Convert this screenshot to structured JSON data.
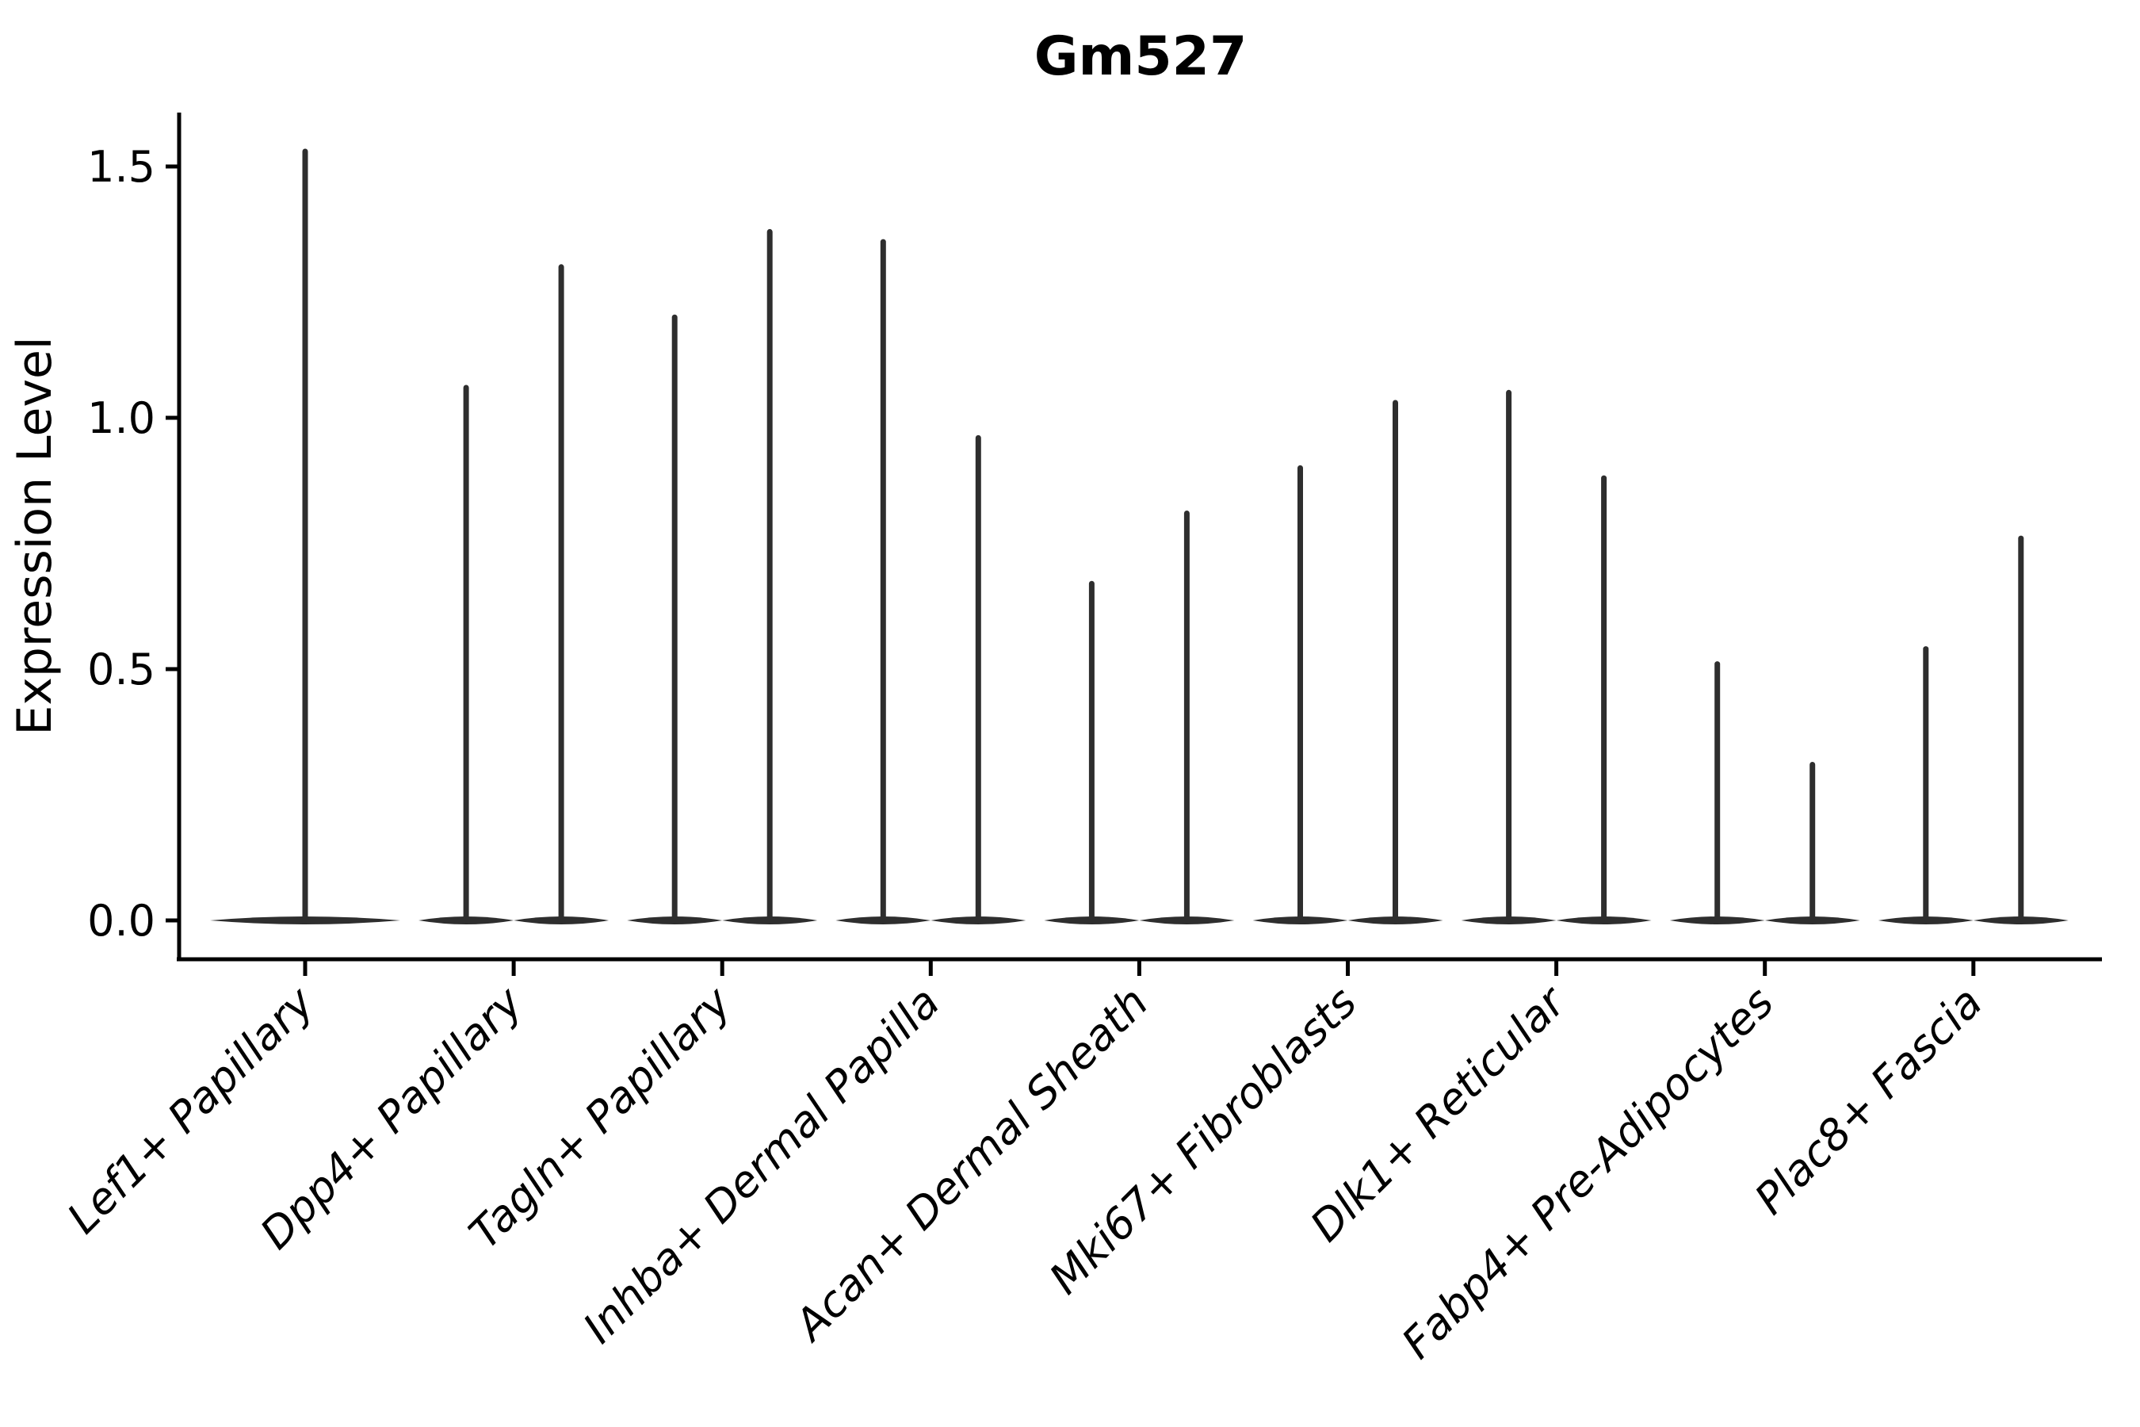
{
  "chart_data": {
    "type": "violin",
    "title": "Gm527",
    "ylabel": "Expression Level",
    "xlabel": "",
    "yticks": [
      "0.0",
      "0.5",
      "1.0",
      "1.5"
    ],
    "ytick_values": [
      0.0,
      0.5,
      1.0,
      1.5
    ],
    "ylim": [
      -0.08,
      1.61
    ],
    "grid": false,
    "legend": "none",
    "xlabel_rotation_degrees": 45,
    "xlabel_font_style": "italic",
    "violin_color": "#2e2e2e",
    "axis_color": "#000000",
    "baseline_value": 0.0,
    "categories": [
      "Lef1+ Papillary",
      "Dpp4+ Papillary",
      "Tagln+ Papillary",
      "Inhba+ Dermal Papilla",
      "Acan+ Dermal Sheath",
      "Mki67+ Fibroblasts",
      "Dlk1+ Reticular",
      "Fabp4+ Pre-Adipocytes",
      "Plac8+ Fascia"
    ],
    "violins": [
      {
        "category": "Lef1+ Papillary",
        "max_values": [
          1.53
        ]
      },
      {
        "category": "Dpp4+ Papillary",
        "max_values": [
          1.06,
          1.3
        ]
      },
      {
        "category": "Tagln+ Papillary",
        "max_values": [
          1.2,
          1.37
        ]
      },
      {
        "category": "Inhba+ Dermal Papilla",
        "max_values": [
          1.35,
          0.96
        ]
      },
      {
        "category": "Acan+ Dermal Sheath",
        "max_values": [
          0.67,
          0.81
        ]
      },
      {
        "category": "Mki67+ Fibroblasts",
        "max_values": [
          0.9,
          1.03
        ]
      },
      {
        "category": "Dlk1+ Reticular",
        "max_values": [
          1.05,
          0.88
        ]
      },
      {
        "category": "Fabp4+ Pre-Adipocytes",
        "max_values": [
          0.51,
          0.31
        ]
      },
      {
        "category": "Plac8+ Fascia",
        "max_values": [
          0.54,
          0.76
        ]
      }
    ],
    "violin_shape_note": "Each violin is a flat lens at expression 0 with a thin spike rising to max_values"
  }
}
